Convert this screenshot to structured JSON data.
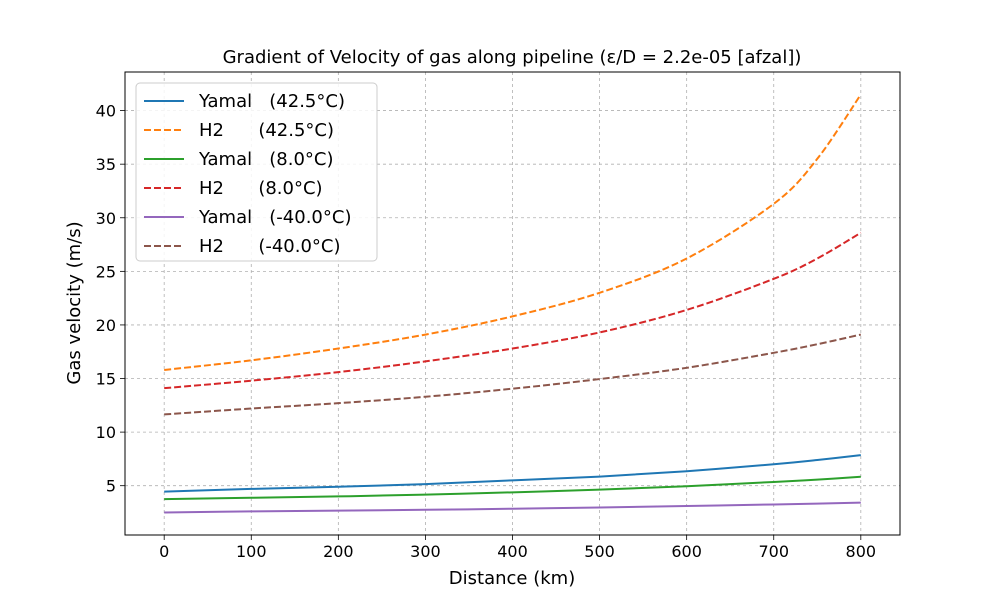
{
  "chart_data": {
    "type": "line",
    "title": "Gradient of Velocity of gas along pipeline  (ε/D = 2.2e-05 [afzal])",
    "xlabel": "Distance (km)",
    "ylabel": "Gas velocity (m/s)",
    "xlim": [
      -45,
      845
    ],
    "ylim": [
      0.4,
      43.6
    ],
    "xticks": [
      0,
      100,
      200,
      300,
      400,
      500,
      600,
      700,
      800
    ],
    "yticks": [
      5,
      10,
      15,
      20,
      25,
      30,
      35,
      40
    ],
    "grid": true,
    "legend_position": "top-left",
    "x": [
      0,
      100,
      200,
      300,
      400,
      500,
      600,
      700,
      750,
      800
    ],
    "series": [
      {
        "name": "Yamal   (42.5°C)",
        "color": "#1f77b4",
        "style": "solid",
        "values": [
          4.45,
          4.7,
          4.9,
          5.15,
          5.5,
          5.85,
          6.35,
          7.0,
          7.4,
          7.85
        ]
      },
      {
        "name": "H2      (42.5°C)",
        "color": "#ff7f0e",
        "style": "dashed",
        "values": [
          15.8,
          16.7,
          17.8,
          19.1,
          20.8,
          23.0,
          26.2,
          31.3,
          35.5,
          41.5
        ]
      },
      {
        "name": "Yamal   (8.0°C)",
        "color": "#2ca02c",
        "style": "solid",
        "values": [
          3.75,
          3.87,
          4.0,
          4.17,
          4.38,
          4.63,
          4.95,
          5.35,
          5.57,
          5.83
        ]
      },
      {
        "name": "H2      (8.0°C)",
        "color": "#d62728",
        "style": "dashed",
        "values": [
          14.1,
          14.8,
          15.6,
          16.6,
          17.8,
          19.3,
          21.4,
          24.3,
          26.2,
          28.6
        ]
      },
      {
        "name": "Yamal   (-40.0°C)",
        "color": "#9467bd",
        "style": "solid",
        "values": [
          2.5,
          2.6,
          2.67,
          2.75,
          2.85,
          2.97,
          3.1,
          3.25,
          3.33,
          3.42
        ]
      },
      {
        "name": "H2      (-40.0°C)",
        "color": "#8c564b",
        "style": "dashed",
        "values": [
          11.65,
          12.2,
          12.7,
          13.3,
          14.05,
          14.95,
          16.0,
          17.4,
          18.2,
          19.1
        ]
      }
    ]
  }
}
